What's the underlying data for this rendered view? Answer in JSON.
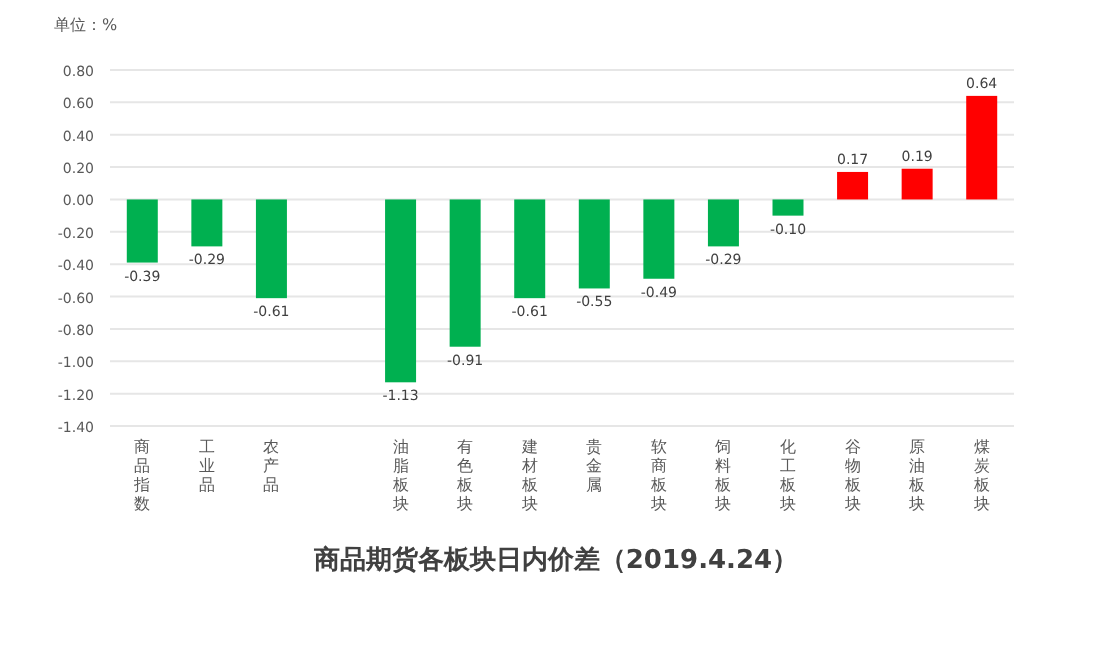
{
  "chart_data": {
    "type": "bar",
    "title": "商品期货各板块日内价差（2019.4.24）",
    "ylabel": "单位：%",
    "categories": [
      "商品指数",
      "工业品",
      "农产品",
      null,
      "油脂板块",
      "有色板块",
      "建材板块",
      "贵金属",
      "软商板块",
      "饲料板块",
      "化工板块",
      "谷物板块",
      "原油板块",
      "煤炭板块"
    ],
    "values": [
      -0.39,
      -0.29,
      -0.61,
      null,
      -1.13,
      -0.91,
      -0.61,
      -0.55,
      -0.49,
      -0.29,
      -0.1,
      0.17,
      0.19,
      0.64
    ],
    "colors": [
      "#00b050",
      "#00b050",
      "#00b050",
      null,
      "#00b050",
      "#00b050",
      "#00b050",
      "#00b050",
      "#00b050",
      "#00b050",
      "#00b050",
      "#ff0000",
      "#ff0000",
      "#ff0000"
    ],
    "value_labels": [
      "-0.39",
      "-0.29",
      "-0.61",
      null,
      "-1.13",
      "-0.91",
      "-0.61",
      "-0.55",
      "-0.49",
      "-0.29",
      "-0.10",
      "0.17",
      "0.19",
      "0.64"
    ],
    "ylim": [
      -1.4,
      0.8
    ],
    "yticks": [
      {
        "value": 0.8,
        "label": "0.80"
      },
      {
        "value": 0.6,
        "label": "0.60"
      },
      {
        "value": 0.4,
        "label": "0.40"
      },
      {
        "value": 0.2,
        "label": "0.20"
      },
      {
        "value": 0,
        "label": "0.00"
      },
      {
        "value": -0.2,
        "label": "-0.20"
      },
      {
        "value": -0.4,
        "label": "-0.40"
      },
      {
        "value": -0.6,
        "label": "-0.60"
      },
      {
        "value": -0.8,
        "label": "-0.80"
      },
      {
        "value": -1.0,
        "label": "-1.00"
      },
      {
        "value": -1.2,
        "label": "-1.20"
      },
      {
        "value": -1.4,
        "label": "-1.40"
      }
    ],
    "grid": "y"
  }
}
